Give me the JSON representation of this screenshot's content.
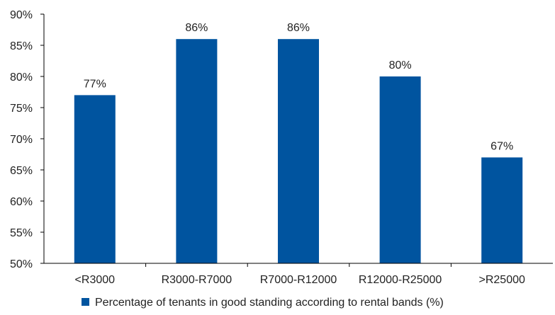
{
  "chart_data": {
    "type": "bar",
    "categories": [
      "<R3000",
      "R3000-R7000",
      "R7000-R12000",
      "R12000-R25000",
      ">R25000"
    ],
    "series": [
      {
        "name": "Percentage of tenants in good standing according to rental bands (%)",
        "values": [
          77,
          86,
          86,
          80,
          67
        ],
        "data_labels": [
          "77%",
          "86%",
          "86%",
          "80%",
          "67%"
        ]
      }
    ],
    "y_ticks": [
      "50%",
      "55%",
      "60%",
      "65%",
      "70%",
      "75%",
      "80%",
      "85%",
      "90%"
    ],
    "ylim": [
      50,
      90
    ],
    "title": "",
    "xlabel": "",
    "ylabel": "",
    "grid": false,
    "legend_position": "bottom",
    "colors": {
      "bar": "#00549F",
      "axis": "#000000"
    }
  }
}
